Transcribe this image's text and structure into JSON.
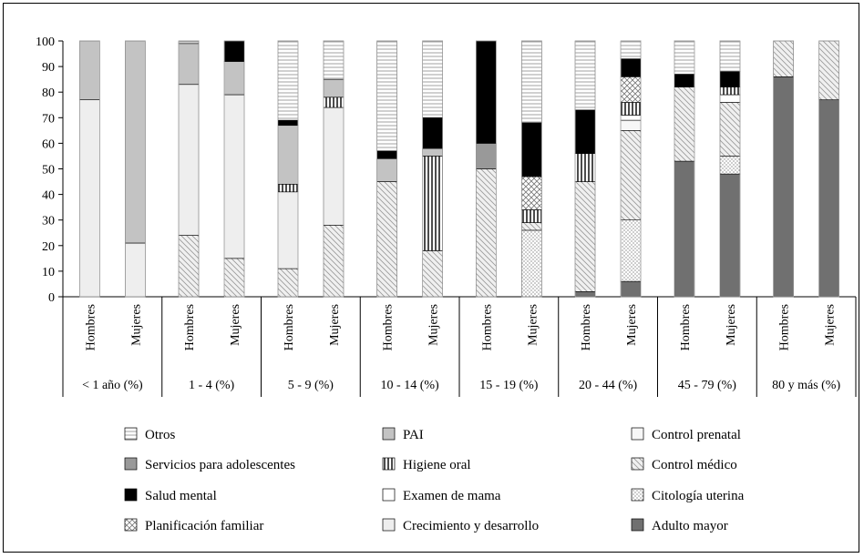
{
  "chart_data": {
    "type": "bar",
    "stacked": true,
    "ylim": [
      0,
      100
    ],
    "yticks": [
      0,
      10,
      20,
      30,
      40,
      50,
      60,
      70,
      80,
      90,
      100
    ],
    "groups": [
      "< 1 año (%)",
      "1 - 4 (%)",
      "5 - 9 (%)",
      "10 - 14 (%)",
      "15 - 19 (%)",
      "20 - 44 (%)",
      "45 - 79 (%)",
      "80 y más (%)"
    ],
    "sub_categories": [
      "Hombres",
      "Mujeres"
    ],
    "bars": [
      {
        "group": "< 1 año (%)",
        "sex": "Hombres",
        "segments": {
          "Crecimiento y desarrollo": 77,
          "PAI": 23
        }
      },
      {
        "group": "< 1 año (%)",
        "sex": "Mujeres",
        "segments": {
          "Crecimiento y desarrollo": 21,
          "PAI": 79
        }
      },
      {
        "group": "1 - 4 (%)",
        "sex": "Hombres",
        "segments": {
          "Control médico": 24,
          "Crecimiento y desarrollo": 59,
          "PAI": 16,
          "Otros": 1
        }
      },
      {
        "group": "1 - 4 (%)",
        "sex": "Mujeres",
        "segments": {
          "Control médico": 15,
          "Crecimiento y desarrollo": 64,
          "PAI": 13,
          "Salud mental": 8
        }
      },
      {
        "group": "5 - 9 (%)",
        "sex": "Hombres",
        "segments": {
          "Control médico": 11,
          "Crecimiento y desarrollo": 30,
          "Higiene oral": 3,
          "PAI": 23,
          "Salud mental": 2,
          "Otros": 31
        }
      },
      {
        "group": "5 - 9 (%)",
        "sex": "Mujeres",
        "segments": {
          "Control médico": 28,
          "Crecimiento y desarrollo": 46,
          "Higiene oral": 4,
          "PAI": 7,
          "Otros": 15
        }
      },
      {
        "group": "10 - 14 (%)",
        "sex": "Hombres",
        "segments": {
          "Control médico": 45,
          "PAI": 9,
          "Salud mental": 3,
          "Otros": 43
        }
      },
      {
        "group": "10 - 14 (%)",
        "sex": "Mujeres",
        "segments": {
          "Control médico": 18,
          "Higiene oral": 37,
          "PAI": 3,
          "Salud mental": 12,
          "Otros": 30
        }
      },
      {
        "group": "15 - 19 (%)",
        "sex": "Hombres",
        "segments": {
          "Control médico": 50,
          "Salud mental": 40,
          "Servicios para adolescentes": 10
        }
      },
      {
        "group": "15 - 19 (%)",
        "sex": "Mujeres",
        "segments": {
          "Citología uterina": 26,
          "Control médico": 3,
          "Higiene oral": 5,
          "Planificación familiar": 13,
          "Salud mental": 21,
          "Otros": 32
        }
      },
      {
        "group": "20 - 44 (%)",
        "sex": "Hombres",
        "segments": {
          "Adulto mayor": 2,
          "Control médico": 43,
          "Higiene oral": 11,
          "Salud mental": 17,
          "Otros": 27
        }
      },
      {
        "group": "20 - 44 (%)",
        "sex": "Mujeres",
        "segments": {
          "Adulto mayor": 6,
          "Citología uterina": 24,
          "Control médico": 35,
          "Control prenatal": 4,
          "Examen de mama": 2,
          "Higiene oral": 5,
          "Planificación familiar": 10,
          "Salud mental": 7,
          "Otros": 7
        }
      },
      {
        "group": "45 - 79 (%)",
        "sex": "Hombres",
        "segments": {
          "Adulto mayor": 53,
          "Control médico": 29,
          "Salud mental": 5,
          "Otros": 13
        }
      },
      {
        "group": "45 - 79 (%)",
        "sex": "Mujeres",
        "segments": {
          "Adulto mayor": 48,
          "Citología uterina": 7,
          "Control médico": 21,
          "Examen de mama": 3,
          "Higiene oral": 3,
          "Salud mental": 6,
          "Otros": 12
        }
      },
      {
        "group": "80 y más (%)",
        "sex": "Hombres",
        "segments": {
          "Adulto mayor": 86,
          "Control médico": 14
        }
      },
      {
        "group": "80 y más (%)",
        "sex": "Mujeres",
        "segments": {
          "Adulto mayor": 77,
          "Control médico": 23
        }
      }
    ],
    "legend": [
      "Otros",
      "PAI",
      "Control prenatal",
      "Servicios para adolescentes",
      "Higiene oral",
      "Control médico",
      "Salud mental",
      "Examen de mama",
      "Citología uterina",
      "Planificación familiar",
      "Crecimiento y desarrollo",
      "Adulto mayor"
    ],
    "stack_order": [
      "Adulto mayor",
      "Citología uterina",
      "Control médico",
      "Crecimiento y desarrollo",
      "Control prenatal",
      "Examen de mama",
      "Higiene oral",
      "Planificación familiar",
      "PAI",
      "Servicios para adolescentes",
      "Salud mental",
      "Otros"
    ],
    "grid": false,
    "legend_position": "bottom"
  }
}
